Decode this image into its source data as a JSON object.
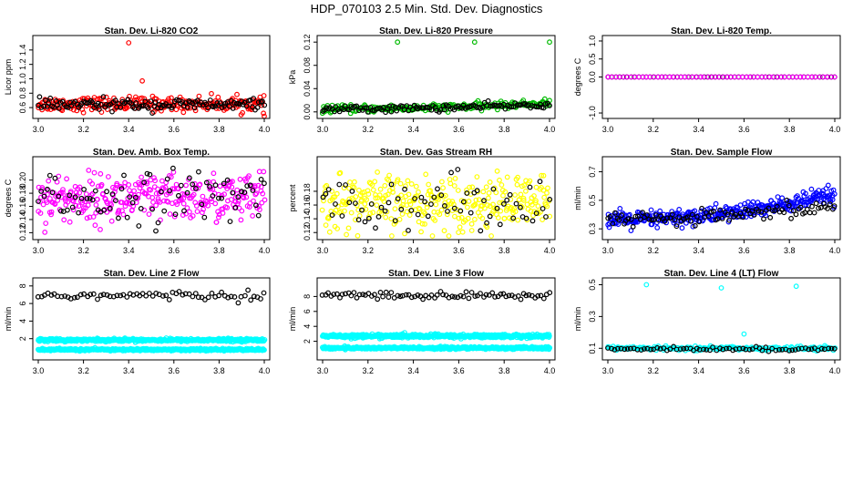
{
  "figure_title": "HDP_070103  2.5 Min. Std. Dev. Diagnostics",
  "colors": {
    "red": "#ff0000",
    "black": "#000000",
    "green": "#00bb00",
    "magenta": "#ff00ff",
    "yellow": "#ffff00",
    "blue": "#0000ff",
    "cyan": "#00ffff"
  },
  "chart_data": [
    {
      "type": "scatter",
      "title": "Stan. Dev. Li-820 CO2",
      "ylabel": "Licor ppm",
      "xlim": [
        3.0,
        4.0
      ],
      "ylim": [
        0.5,
        1.55
      ],
      "xticks": [
        "3.0",
        "3.2",
        "3.4",
        "3.6",
        "3.8",
        "4.0"
      ],
      "yticks": [
        "0.6",
        "0.8",
        "1.0",
        "1.2",
        "1.4"
      ],
      "series": [
        {
          "color": "#ff0000",
          "points": 260,
          "x_range": [
            3.0,
            4.0
          ],
          "y_center": 0.65,
          "y_spread": 0.05,
          "outliers": [
            [
              3.4,
              1.5
            ],
            [
              3.46,
              0.97
            ],
            [
              4.0,
              0.48
            ]
          ]
        },
        {
          "color": "#000000",
          "points": 130,
          "x_range": [
            3.0,
            4.0
          ],
          "y_center": 0.64,
          "y_spread": 0.04
        }
      ]
    },
    {
      "type": "scatter",
      "title": "Stan. Dev. Li-820 Pressure",
      "ylabel": "kPa",
      "xlim": [
        3.0,
        4.0
      ],
      "ylim": [
        -0.005,
        0.125
      ],
      "xticks": [
        "3.0",
        "3.2",
        "3.4",
        "3.6",
        "3.8",
        "4.0"
      ],
      "yticks": [
        "0.00",
        "0.04",
        "0.08",
        "0.12"
      ],
      "series": [
        {
          "color": "#00bb00",
          "points": 240,
          "x_range": [
            3.0,
            4.0
          ],
          "y_center": 0.005,
          "y_spread": 0.003,
          "trend": 0.01,
          "outliers": [
            [
              3.33,
              0.12
            ],
            [
              3.67,
              0.12
            ],
            [
              4.0,
              0.12
            ]
          ]
        },
        {
          "color": "#000000",
          "points": 120,
          "x_range": [
            3.0,
            4.0
          ],
          "y_center": 0.005,
          "y_spread": 0.003,
          "trend": 0.008
        }
      ]
    },
    {
      "type": "scatter",
      "title": "Stan. Dev. Li-820 Temp.",
      "ylabel": "degrees C",
      "xlim": [
        3.0,
        4.0
      ],
      "ylim": [
        -1.05,
        1.05
      ],
      "xticks": [
        "3.0",
        "3.2",
        "3.4",
        "3.6",
        "3.8",
        "4.0"
      ],
      "yticks": [
        "-1.0",
        "0.0",
        "0.5",
        "1.0"
      ],
      "series": [
        {
          "color": "#000000",
          "points": 60,
          "x_range": [
            3.0,
            4.0
          ],
          "y_center": 0.0,
          "y_spread": 0.0
        },
        {
          "color": "#ff00ff",
          "points": 60,
          "x_range": [
            3.0,
            4.0
          ],
          "y_center": 0.0,
          "y_spread": 0.0
        }
      ]
    },
    {
      "type": "scatter",
      "title": "Stan. Dev. Amb. Box Temp.",
      "ylabel": "degrees C",
      "xlim": [
        3.0,
        4.0
      ],
      "ylim": [
        0.115,
        0.23
      ],
      "xticks": [
        "3.0",
        "3.2",
        "3.4",
        "3.6",
        "3.8",
        "4.0"
      ],
      "yticks": [
        "0.12",
        "0.14",
        "0.16",
        "0.18",
        "0.20"
      ],
      "series": [
        {
          "color": "#ff00ff",
          "points": 320,
          "x_range": [
            3.0,
            4.0
          ],
          "y_center": 0.172,
          "y_spread": 0.018
        },
        {
          "color": "#000000",
          "points": 80,
          "x_range": [
            3.0,
            4.0
          ],
          "y_center": 0.175,
          "y_spread": 0.02
        }
      ]
    },
    {
      "type": "scatter",
      "title": "Stan. Dev. Gas Stream RH",
      "ylabel": "percent",
      "xlim": [
        3.0,
        4.0
      ],
      "ylim": [
        0.115,
        0.225
      ],
      "xticks": [
        "3.0",
        "3.2",
        "3.4",
        "3.6",
        "3.8",
        "4.0"
      ],
      "yticks": [
        "0.12",
        "0.14",
        "0.16",
        "0.18"
      ],
      "series": [
        {
          "color": "#ffff00",
          "points": 320,
          "x_range": [
            3.0,
            4.0
          ],
          "y_center": 0.163,
          "y_spread": 0.02
        },
        {
          "color": "#000000",
          "points": 70,
          "x_range": [
            3.0,
            4.0
          ],
          "y_center": 0.165,
          "y_spread": 0.018
        }
      ]
    },
    {
      "type": "scatter",
      "title": "Stan. Dev. Sample Flow",
      "ylabel": "ml/min",
      "xlim": [
        3.0,
        4.0
      ],
      "ylim": [
        0.25,
        0.78
      ],
      "xticks": [
        "3.0",
        "3.2",
        "3.4",
        "3.6",
        "3.8",
        "4.0"
      ],
      "yticks": [
        "0.3",
        "0.5",
        "0.7"
      ],
      "series": [
        {
          "color": "#0000ff",
          "points": 360,
          "x_range": [
            3.0,
            4.0
          ],
          "y_center": 0.36,
          "y_spread": 0.03,
          "trend": 0.18
        },
        {
          "color": "#000000",
          "points": 100,
          "x_range": [
            3.0,
            4.0
          ],
          "y_center": 0.36,
          "y_spread": 0.025,
          "trend": 0.1
        }
      ]
    },
    {
      "type": "scatter",
      "title": "Stan. Dev. Line 2 Flow",
      "ylabel": "ml/min",
      "xlim": [
        3.0,
        4.0
      ],
      "ylim": [
        0.0,
        8.5
      ],
      "xticks": [
        "3.0",
        "3.2",
        "3.4",
        "3.6",
        "3.8",
        "4.0"
      ],
      "yticks": [
        "2",
        "4",
        "6",
        "8"
      ],
      "series": [
        {
          "color": "#000000",
          "points": 70,
          "x_range": [
            3.0,
            4.0
          ],
          "y_center": 6.9,
          "y_spread": 0.25
        },
        {
          "color": "#00ffff",
          "points": 500,
          "x_range": [
            3.0,
            4.0
          ],
          "y_center": 1.85,
          "y_spread": 0.08
        },
        {
          "color": "#00ffff",
          "points": 500,
          "x_range": [
            3.0,
            4.0
          ],
          "y_center": 0.75,
          "y_spread": 0.06
        }
      ]
    },
    {
      "type": "scatter",
      "title": "Stan. Dev. Line 3 Flow",
      "ylabel": "ml/min",
      "xlim": [
        3.0,
        4.0
      ],
      "ylim": [
        0.0,
        10.0
      ],
      "xticks": [
        "3.0",
        "3.2",
        "3.4",
        "3.6",
        "3.8",
        "4.0"
      ],
      "yticks": [
        "2",
        "4",
        "6",
        "8"
      ],
      "series": [
        {
          "color": "#000000",
          "points": 80,
          "x_range": [
            3.0,
            4.0
          ],
          "y_center": 8.1,
          "y_spread": 0.25
        },
        {
          "color": "#00ffff",
          "points": 500,
          "x_range": [
            3.0,
            4.0
          ],
          "y_center": 2.7,
          "y_spread": 0.12
        },
        {
          "color": "#00ffff",
          "points": 500,
          "x_range": [
            3.0,
            4.0
          ],
          "y_center": 1.1,
          "y_spread": 0.08
        }
      ]
    },
    {
      "type": "scatter",
      "title": "Stan. Dev. Line 4 (LT) Flow",
      "ylabel": "ml/min",
      "xlim": [
        3.0,
        4.0
      ],
      "ylim": [
        0.05,
        0.52
      ],
      "xticks": [
        "3.0",
        "3.2",
        "3.4",
        "3.6",
        "3.8",
        "4.0"
      ],
      "yticks": [
        "0.1",
        "0.3",
        "0.5"
      ],
      "series": [
        {
          "color": "#00ffff",
          "points": 200,
          "x_range": [
            3.0,
            4.0
          ],
          "y_center": 0.1,
          "y_spread": 0.006,
          "outliers": [
            [
              3.17,
              0.5
            ],
            [
              3.5,
              0.48
            ],
            [
              3.6,
              0.19
            ],
            [
              3.83,
              0.49
            ]
          ]
        },
        {
          "color": "#000000",
          "points": 70,
          "x_range": [
            3.0,
            4.0
          ],
          "y_center": 0.095,
          "y_spread": 0.006
        }
      ]
    }
  ]
}
